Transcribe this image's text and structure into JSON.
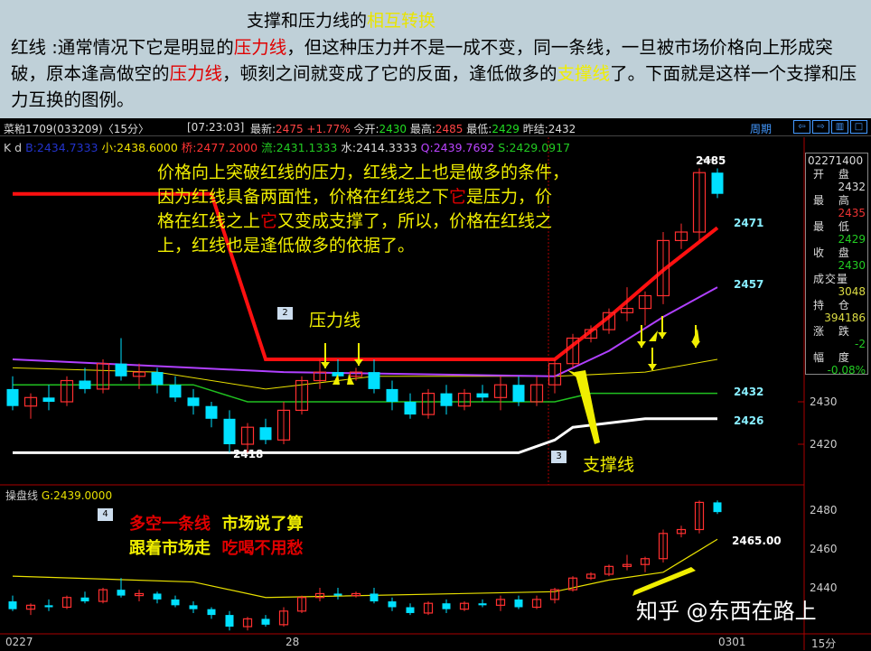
{
  "header": {
    "title_pre": "支撑和压力线的",
    "title_hl": "相互转换",
    "intro_parts": [
      "红线 :通常情况下它是明显的",
      "压力线",
      "，但这种压力并不是一成不变，同一条线，一旦被市场价格向上形成突破，原本逢高做空的",
      "压力线",
      "，顿刻之间就变成了它的反面，逢低做多的",
      "支撑线",
      "了。下面就是这样一个支撑和压力互换的图例。"
    ]
  },
  "quote_bar": {
    "symbol": "菜粕1709(033209)〈15分〉",
    "time": "[07:23:03]",
    "latest_label": "最新:",
    "latest": "2475",
    "change": "+1.77%",
    "open_label": "今开:",
    "open": "2430",
    "high_label": "最高:",
    "high": "2485",
    "low_label": "最低:",
    "low": "2429",
    "prev_label": "昨结:",
    "prev": "2432",
    "period": "周期"
  },
  "indicators": {
    "kd": "K d",
    "b": "B:2434.7333",
    "s1": "小:2438.6000",
    "q1": "桥:2477.2000",
    "l": "流:2431.1333",
    "w": "水:2414.3333",
    "q": "Q:2439.7692",
    "s": "S:2429.0917"
  },
  "info_panel": {
    "datetime": "02271400",
    "open_label": "开 盘",
    "open": "2432",
    "high_label": "最 高",
    "high": "2435",
    "low_label": "最 低",
    "low": "2429",
    "close_label": "收 盘",
    "close": "2430",
    "vol_label": "成交量",
    "vol": "3048",
    "oi_label": "持 仓",
    "oi": "394186",
    "chg_label": "涨 跌",
    "chg": "-2",
    "pct_label": "幅 度",
    "pct": "-0.08%"
  },
  "annotations": {
    "main": "价格向上突破红线的压力，红线之上也是做多的条件，因为红线具备两面性，价格在红线之下它是压力，价格在红线之上它又变成支撑了，所以，价格在红线之上，红线也是逢低做多的依据了。",
    "main_parts": [
      "价格向上突破红线的压力，红线之上也是做多的条件，\n因为红线具备两面性，价格在红线之下",
      "它",
      "是压力，价\n格在红线之上",
      "它",
      "又变成支撑了，所以，价格在红线之\n上，红线也是逢低做多的依据了。"
    ],
    "pressure": "压力线",
    "support": "支撑线",
    "t1a": "多空一条线",
    "t1b": "市场说了算",
    "t2a": "跟着市场走",
    "t2b": "吃喝不用愁",
    "tag2": "2",
    "tag3": "3",
    "tag4": "4",
    "watermark": "知乎 @东西在路上"
  },
  "value_labels": {
    "hi": "2485",
    "lo": "2418",
    "red": "2471",
    "purple": "2457",
    "green": "2432",
    "white": "2426",
    "g": "2465.00"
  },
  "axis": {
    "upper": [
      "2430",
      "2420"
    ],
    "lower": [
      "2480",
      "2460",
      "2440"
    ],
    "x": [
      "0227",
      "28",
      "0301"
    ],
    "period": "15分"
  },
  "lower": {
    "label": "操盘线",
    "g": "G:2439.0000"
  },
  "colors": {
    "up": "#ff3030",
    "down": "#00e0ff",
    "red_line": "#ff1010",
    "purple": "#b040ff",
    "green": "#20c020",
    "white": "#ffffff",
    "yellow": "#e8e000"
  },
  "candles": [
    [
      2433,
      2436,
      2428,
      2429
    ],
    [
      2429,
      2432,
      2426,
      2431
    ],
    [
      2431,
      2434,
      2428,
      2430
    ],
    [
      2430,
      2436,
      2429,
      2435
    ],
    [
      2435,
      2438,
      2432,
      2433
    ],
    [
      2433,
      2440,
      2432,
      2439
    ],
    [
      2439,
      2445,
      2435,
      2436
    ],
    [
      2436,
      2439,
      2433,
      2437
    ],
    [
      2437,
      2438,
      2432,
      2434
    ],
    [
      2434,
      2436,
      2430,
      2431
    ],
    [
      2431,
      2433,
      2427,
      2429
    ],
    [
      2429,
      2430,
      2424,
      2426
    ],
    [
      2426,
      2428,
      2418,
      2420
    ],
    [
      2420,
      2425,
      2418,
      2424
    ],
    [
      2424,
      2426,
      2420,
      2421
    ],
    [
      2421,
      2430,
      2420,
      2428
    ],
    [
      2428,
      2436,
      2427,
      2435
    ],
    [
      2435,
      2440,
      2433,
      2437
    ],
    [
      2437,
      2440,
      2434,
      2436
    ],
    [
      2436,
      2438,
      2435,
      2437
    ],
    [
      2437,
      2440,
      2432,
      2433
    ],
    [
      2433,
      2435,
      2428,
      2430
    ],
    [
      2430,
      2432,
      2426,
      2427
    ],
    [
      2427,
      2433,
      2426,
      2432
    ],
    [
      2432,
      2434,
      2427,
      2429
    ],
    [
      2429,
      2433,
      2428,
      2432
    ],
    [
      2432,
      2434,
      2430,
      2431
    ],
    [
      2431,
      2436,
      2428,
      2434
    ],
    [
      2434,
      2436,
      2429,
      2430
    ],
    [
      2430,
      2436,
      2429,
      2434
    ],
    [
      2434,
      2440,
      2432,
      2439
    ],
    [
      2439,
      2446,
      2438,
      2445
    ],
    [
      2445,
      2448,
      2444,
      2447
    ],
    [
      2447,
      2452,
      2446,
      2451
    ],
    [
      2451,
      2457,
      2449,
      2452
    ],
    [
      2452,
      2456,
      2448,
      2455
    ],
    [
      2455,
      2470,
      2453,
      2468
    ],
    [
      2468,
      2472,
      2466,
      2470
    ],
    [
      2470,
      2485,
      2468,
      2484
    ],
    [
      2484,
      2485,
      2478,
      2479
    ]
  ],
  "lines": {
    "red": [
      [
        0,
        2479
      ],
      [
        11,
        2479
      ],
      [
        14,
        2440
      ],
      [
        30,
        2440
      ],
      [
        33,
        2450
      ],
      [
        36,
        2461
      ],
      [
        39,
        2471
      ]
    ],
    "purple": [
      [
        0,
        2440
      ],
      [
        10,
        2438
      ],
      [
        15,
        2437
      ],
      [
        30,
        2436
      ],
      [
        33,
        2442
      ],
      [
        36,
        2450
      ],
      [
        39,
        2457
      ]
    ],
    "yellow": [
      [
        0,
        2438
      ],
      [
        8,
        2437
      ],
      [
        14,
        2433
      ],
      [
        20,
        2436
      ],
      [
        30,
        2436
      ],
      [
        35,
        2437
      ],
      [
        39,
        2440
      ]
    ],
    "green": [
      [
        0,
        2434
      ],
      [
        10,
        2434
      ],
      [
        13,
        2430
      ],
      [
        30,
        2430
      ],
      [
        32,
        2432
      ],
      [
        39,
        2432
      ]
    ],
    "white": [
      [
        0,
        2418
      ],
      [
        28,
        2418
      ],
      [
        30,
        2421
      ],
      [
        31,
        2424
      ],
      [
        35,
        2426
      ],
      [
        39,
        2426
      ]
    ],
    "g": [
      [
        0,
        2446
      ],
      [
        10,
        2443
      ],
      [
        14,
        2435
      ],
      [
        30,
        2438
      ],
      [
        33,
        2444
      ],
      [
        36,
        2448
      ],
      [
        39,
        2465
      ]
    ]
  }
}
